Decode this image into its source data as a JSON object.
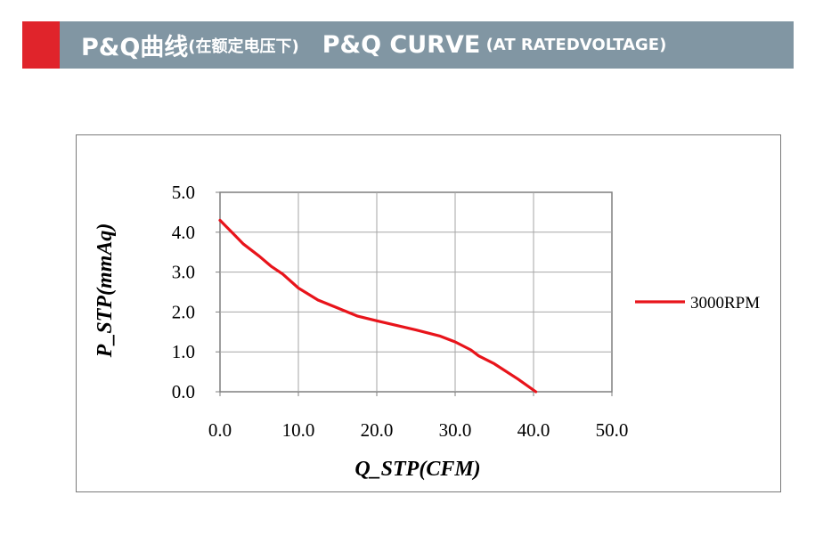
{
  "header": {
    "title_cn": "P&Q曲线",
    "subtitle_cn": "(在额定电压下)",
    "title_en": "P&Q CURVE",
    "subtitle_en": "(AT RATEDVOLTAGE)",
    "accent_color": "#e0242b",
    "bar_color": "#8196a3"
  },
  "chart_data": {
    "type": "line",
    "title": "",
    "xlabel": "Q_STP(CFM)",
    "ylabel": "P_STP(mmAq)",
    "xlim": [
      0,
      50
    ],
    "ylim": [
      0,
      5
    ],
    "xticks": [
      "0.0",
      "10.0",
      "20.0",
      "30.0",
      "40.0",
      "50.0"
    ],
    "yticks": [
      "0.0",
      "1.0",
      "2.0",
      "3.0",
      "4.0",
      "5.0"
    ],
    "grid": true,
    "legend_position": "right",
    "series": [
      {
        "name": "3000RPM",
        "color": "#e8141b",
        "x": [
          0.0,
          1.5,
          3.0,
          5.0,
          6.5,
          8.0,
          10.0,
          12.5,
          15.0,
          17.5,
          20.0,
          25.0,
          28.0,
          30.0,
          32.0,
          33.0,
          35.0,
          38.0,
          40.3
        ],
        "y": [
          4.3,
          4.0,
          3.7,
          3.4,
          3.15,
          2.95,
          2.6,
          2.3,
          2.1,
          1.9,
          1.78,
          1.55,
          1.4,
          1.25,
          1.05,
          0.9,
          0.7,
          0.32,
          0.0
        ]
      }
    ]
  }
}
